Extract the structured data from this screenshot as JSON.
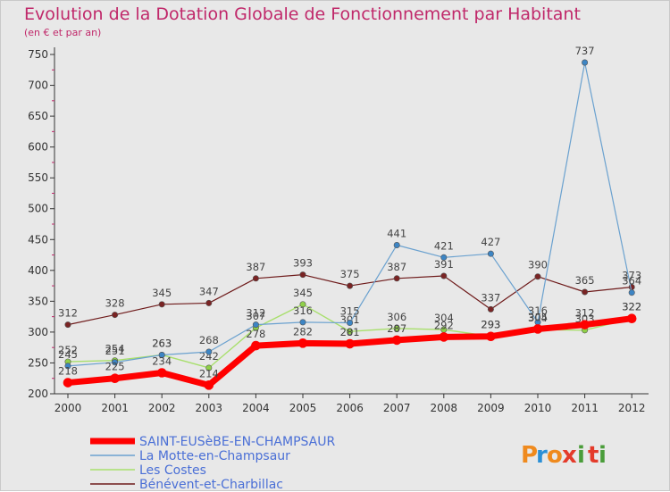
{
  "title": "Evolution de la Dotation Globale de Fonctionnement par Habitant",
  "subtitle": "(en € et par an)",
  "logo": {
    "letters": [
      "P",
      "r",
      "o",
      "x",
      "i",
      "t",
      "i"
    ],
    "colors": [
      "#ef8a1e",
      "#2a8fd6",
      "#ef8a1e",
      "#e43b2b",
      "#4a9d3a",
      "#e43b2b",
      "#4a9d3a"
    ]
  },
  "chart_data": {
    "type": "line",
    "x": [
      "2000",
      "2001",
      "2002",
      "2003",
      "2004",
      "2005",
      "2006",
      "2007",
      "2008",
      "2009",
      "2010",
      "2011",
      "2012"
    ],
    "ylim": [
      200,
      750
    ],
    "yticks": [
      "200",
      "250",
      "300",
      "350",
      "400",
      "450",
      "500",
      "550",
      "600",
      "650",
      "700",
      "750"
    ],
    "grid": false,
    "legend_position": "bottom-left",
    "series": [
      {
        "name": "Bénévent-et-Charbillac",
        "color": "#6e1a1a",
        "marker": "#7a2424",
        "width": 1.2,
        "values": [
          312,
          328,
          345,
          347,
          387,
          393,
          375,
          387,
          391,
          337,
          390,
          365,
          373
        ],
        "labels": [
          "312",
          "328",
          "345",
          "347",
          "387",
          "393",
          "375",
          "387",
          "391",
          "337",
          "390",
          "365",
          "373"
        ]
      },
      {
        "name": "Les Costes",
        "color": "#a8df6c",
        "marker": "#8fd048",
        "width": 1.4,
        "values": [
          252,
          254,
          263,
          242,
          307,
          345,
          301,
          306,
          304,
          293,
          304,
          303,
          322
        ],
        "labels": [
          "252",
          "254",
          "263",
          "242",
          "307",
          "345",
          "301",
          "306",
          "304",
          "293",
          "304",
          "303",
          "322"
        ]
      },
      {
        "name": "La Motte-en-Champsaur",
        "color": "#6aa1cf",
        "marker": "#3d85c4",
        "width": 1.2,
        "values": [
          245,
          251,
          263,
          268,
          312,
          316,
          315,
          441,
          421,
          427,
          316,
          737,
          364
        ],
        "labels": [
          "245",
          "251",
          "263",
          "268",
          "312",
          "316",
          "315",
          "441",
          "421",
          "427",
          "316",
          "737",
          "364"
        ]
      },
      {
        "name": "SAINT-EUSèBE-EN-CHAMPSAUR",
        "color": "#ff0000",
        "marker": "#ff0000",
        "width": 7,
        "values": [
          218,
          225,
          234,
          214,
          278,
          282,
          281,
          287,
          292,
          293,
          305,
          312,
          322
        ],
        "labels": [
          "218",
          "225",
          "234",
          "214",
          "278",
          "282",
          "281",
          "287",
          "292",
          "293",
          "305",
          "312",
          "322"
        ]
      }
    ],
    "legend": [
      {
        "name": "SAINT-EUSèBE-EN-CHAMPSAUR",
        "color": "#ff0000",
        "thick": true
      },
      {
        "name": "La Motte-en-Champsaur",
        "color": "#6aa1cf",
        "thick": false
      },
      {
        "name": "Les Costes",
        "color": "#a8df6c",
        "thick": false
      },
      {
        "name": "Bénévent-et-Charbillac",
        "color": "#6e1a1a",
        "thick": false
      }
    ]
  }
}
